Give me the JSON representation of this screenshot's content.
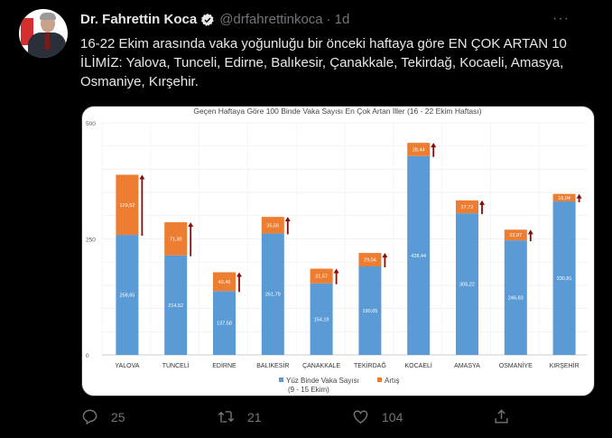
{
  "tweet": {
    "author_name": "Dr. Fahrettin Koca",
    "handle": "@drfahrettinkoca",
    "separator": "·",
    "time": "1d",
    "more_label": "···",
    "text": "16-22 Ekim arasında vaka yoğunluğu bir önceki haftaya göre EN ÇOK ARTAN 10 İLİMİZ: Yalova, Tunceli, Edirne, Balıkesir, Çanakkale, Tekirdağ, Kocaeli, Amasya, Osmaniye, Kırşehir.",
    "verified_icon": "verified-badge-icon"
  },
  "actions": {
    "replies": "25",
    "retweets": "21",
    "likes": "104"
  },
  "colors": {
    "base_series": "#5b9bd5",
    "increase_series": "#ed7d31",
    "arrow": "#8b0a0a",
    "background": "#000000",
    "muted_text": "#71767b"
  },
  "chart_data": {
    "type": "bar",
    "stacked": true,
    "title": "Geçen Haftaya Göre 100 Binde Vaka Sayısı En Çok Artan İller (16 - 22 Ekim Haftası)",
    "categories": [
      "YALOVA",
      "TUNCELİ",
      "EDİRNE",
      "BALIKESİR",
      "ÇANAKKALE",
      "TEKİRDAĞ",
      "KOCAELİ",
      "AMASYA",
      "OSMANİYE",
      "KIRŞEHİR"
    ],
    "series": [
      {
        "name": "Yüz Binde Vaka Sayısı (9 - 15 Ekim)",
        "color": "#5b9bd5",
        "values": [
          258.65,
          214.52,
          137.58,
          261.79,
          154.19,
          190.65,
          428.44,
          305.22,
          246.83,
          330.81
        ]
      },
      {
        "name": "Artış",
        "color": "#ed7d31",
        "values": [
          129.52,
          71.3,
          40.46,
          35.56,
          31.57,
          29.04,
          28.44,
          27.72,
          22.97,
          16.04
        ]
      }
    ],
    "yticks": [
      "0",
      "250",
      "500"
    ],
    "ylim": [
      0,
      500
    ],
    "grid": true,
    "legend": "bottom",
    "legend_labels": [
      "Yüz Binde Vaka Sayısı",
      "(9 - 15 Ekim)",
      "Artış"
    ]
  }
}
